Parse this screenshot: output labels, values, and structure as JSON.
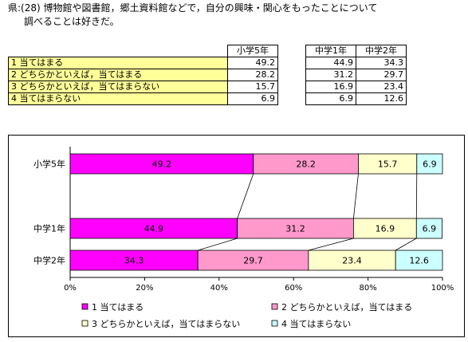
{
  "title": {
    "line1": "県:(28) 博物館や図書館，郷土資料館などで，自分の興味・関心をもったことについて",
    "line2": "調べることは好きだ。"
  },
  "table": {
    "headers": [
      "小学5年",
      "中学1年",
      "中学2年"
    ],
    "rows": [
      {
        "label": "1  当てはまる",
        "values": [
          "49.2",
          "44.9",
          "34.3"
        ]
      },
      {
        "label": "2  どちらかといえば，当てはまる",
        "values": [
          "28.2",
          "31.2",
          "29.7"
        ]
      },
      {
        "label": "3  どちらかといえば，当てはまらない",
        "values": [
          "15.7",
          "16.9",
          "23.4"
        ]
      },
      {
        "label": "4  当てはまらない",
        "values": [
          "6.9",
          "6.9",
          "12.6"
        ]
      }
    ]
  },
  "chart_data": {
    "type": "bar",
    "orientation": "horizontal",
    "stacked": true,
    "categories": [
      "小学5年",
      "中学1年",
      "中学2年"
    ],
    "series": [
      {
        "name": "1  当てはまる",
        "values": [
          49.2,
          44.9,
          34.3
        ],
        "color": "#ff00ff"
      },
      {
        "name": "2  どちらかといえば，当てはまる",
        "values": [
          28.2,
          31.2,
          29.7
        ],
        "color": "#ff99cc"
      },
      {
        "name": "3  どちらかといえば，当てはまらない",
        "values": [
          15.7,
          16.9,
          23.4
        ],
        "color": "#ffffcc"
      },
      {
        "name": "4  当てはまらない",
        "values": [
          6.9,
          6.9,
          12.6
        ],
        "color": "#ccffff"
      }
    ],
    "xlim": [
      0,
      100
    ],
    "xticks": [
      "0%",
      "20%",
      "40%",
      "60%",
      "80%",
      "100%"
    ],
    "grid": false,
    "legend": "bottom"
  }
}
